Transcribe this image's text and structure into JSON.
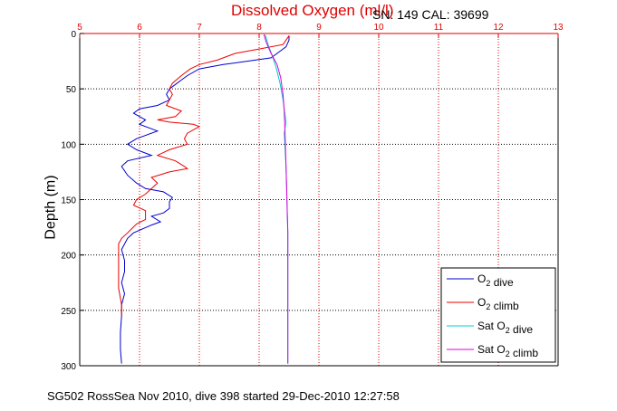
{
  "chart_data": {
    "type": "line",
    "title": "Dissolved Oxygen (ml/l)",
    "sn_cal": "SN: 149  CAL: 39699",
    "ylabel": "Depth (m)",
    "xlabel": "",
    "footer": "SG502 RossSea Nov 2010, dive 398 started 29-Dec-2010 12:27:58",
    "xlim": [
      5,
      13
    ],
    "ylim": [
      0,
      300
    ],
    "y_reversed": true,
    "x_axis_position": "top",
    "x_ticks": [
      5,
      6,
      7,
      8,
      9,
      10,
      11,
      12,
      13
    ],
    "y_ticks": [
      0,
      50,
      100,
      150,
      200,
      250,
      300
    ],
    "grid": true,
    "legend_position": "bottom-right",
    "series": [
      {
        "name": "O2 dive",
        "color": "#0000cc",
        "points": [
          [
            8.5,
            2
          ],
          [
            8.5,
            6
          ],
          [
            8.45,
            12
          ],
          [
            8.3,
            18
          ],
          [
            8.2,
            22
          ],
          [
            7.8,
            25
          ],
          [
            7.4,
            28
          ],
          [
            7.0,
            32
          ],
          [
            6.8,
            38
          ],
          [
            6.7,
            42
          ],
          [
            6.6,
            46
          ],
          [
            6.5,
            50
          ],
          [
            6.45,
            55
          ],
          [
            6.5,
            60
          ],
          [
            6.3,
            65
          ],
          [
            6.0,
            68
          ],
          [
            5.9,
            72
          ],
          [
            6.1,
            78
          ],
          [
            6.0,
            82
          ],
          [
            6.3,
            88
          ],
          [
            5.95,
            95
          ],
          [
            5.8,
            100
          ],
          [
            5.95,
            105
          ],
          [
            6.2,
            110
          ],
          [
            5.8,
            115
          ],
          [
            5.7,
            120
          ],
          [
            5.8,
            128
          ],
          [
            5.95,
            135
          ],
          [
            6.1,
            140
          ],
          [
            6.4,
            143
          ],
          [
            6.55,
            148
          ],
          [
            6.5,
            152
          ],
          [
            6.5,
            158
          ],
          [
            6.4,
            162
          ],
          [
            6.2,
            165
          ],
          [
            6.35,
            170
          ],
          [
            6.2,
            173
          ],
          [
            5.9,
            180
          ],
          [
            5.8,
            185
          ],
          [
            5.7,
            195
          ],
          [
            5.75,
            205
          ],
          [
            5.75,
            215
          ],
          [
            5.7,
            225
          ],
          [
            5.75,
            235
          ],
          [
            5.7,
            245
          ],
          [
            5.7,
            255
          ],
          [
            5.68,
            270
          ],
          [
            5.68,
            285
          ],
          [
            5.7,
            298
          ]
        ]
      },
      {
        "name": "O2 climb",
        "color": "#ee0000",
        "points": [
          [
            8.5,
            2
          ],
          [
            8.45,
            6
          ],
          [
            8.4,
            10
          ],
          [
            8.0,
            14
          ],
          [
            7.6,
            18
          ],
          [
            7.3,
            24
          ],
          [
            7.0,
            28
          ],
          [
            6.85,
            32
          ],
          [
            6.7,
            38
          ],
          [
            6.55,
            45
          ],
          [
            6.5,
            50
          ],
          [
            6.55,
            55
          ],
          [
            6.5,
            60
          ],
          [
            6.45,
            65
          ],
          [
            6.7,
            70
          ],
          [
            6.6,
            75
          ],
          [
            6.3,
            78
          ],
          [
            6.5,
            80
          ],
          [
            6.9,
            82
          ],
          [
            7.0,
            84
          ],
          [
            6.8,
            90
          ],
          [
            6.75,
            95
          ],
          [
            6.8,
            100
          ],
          [
            6.5,
            105
          ],
          [
            6.3,
            110
          ],
          [
            6.6,
            115
          ],
          [
            6.75,
            120
          ],
          [
            6.8,
            122
          ],
          [
            6.5,
            125
          ],
          [
            6.2,
            130
          ],
          [
            6.3,
            135
          ],
          [
            6.2,
            140
          ],
          [
            6.1,
            145
          ],
          [
            5.95,
            150
          ],
          [
            5.9,
            155
          ],
          [
            6.1,
            160
          ],
          [
            6.1,
            168
          ],
          [
            5.95,
            172
          ],
          [
            5.8,
            180
          ],
          [
            5.7,
            185
          ],
          [
            5.65,
            190
          ],
          [
            5.65,
            200
          ],
          [
            5.65,
            215
          ],
          [
            5.65,
            230
          ],
          [
            5.7,
            245
          ],
          [
            5.7,
            255
          ]
        ]
      },
      {
        "name": "Sat O2 dive",
        "color": "#00cccc",
        "points": [
          [
            8.1,
            1
          ],
          [
            8.15,
            10
          ],
          [
            8.22,
            20
          ],
          [
            8.28,
            30
          ],
          [
            8.35,
            45
          ],
          [
            8.4,
            60
          ],
          [
            8.45,
            80
          ],
          [
            8.42,
            90
          ],
          [
            8.43,
            100
          ],
          [
            8.45,
            120
          ],
          [
            8.46,
            140
          ],
          [
            8.47,
            160
          ],
          [
            8.48,
            180
          ],
          [
            8.48,
            200
          ],
          [
            8.48,
            220
          ],
          [
            8.48,
            240
          ],
          [
            8.48,
            260
          ],
          [
            8.48,
            280
          ],
          [
            8.48,
            298
          ]
        ]
      },
      {
        "name": "Sat O2 climb",
        "color": "#dd00dd",
        "points": [
          [
            8.08,
            1
          ],
          [
            8.12,
            8
          ],
          [
            8.2,
            18
          ],
          [
            8.3,
            28
          ],
          [
            8.36,
            40
          ],
          [
            8.4,
            55
          ],
          [
            8.42,
            70
          ],
          [
            8.43,
            85
          ],
          [
            8.44,
            100
          ],
          [
            8.45,
            120
          ],
          [
            8.46,
            140
          ],
          [
            8.47,
            160
          ],
          [
            8.48,
            180
          ],
          [
            8.48,
            200
          ],
          [
            8.48,
            220
          ],
          [
            8.48,
            240
          ],
          [
            8.48,
            260
          ],
          [
            8.48,
            280
          ],
          [
            8.48,
            298
          ]
        ]
      }
    ]
  }
}
